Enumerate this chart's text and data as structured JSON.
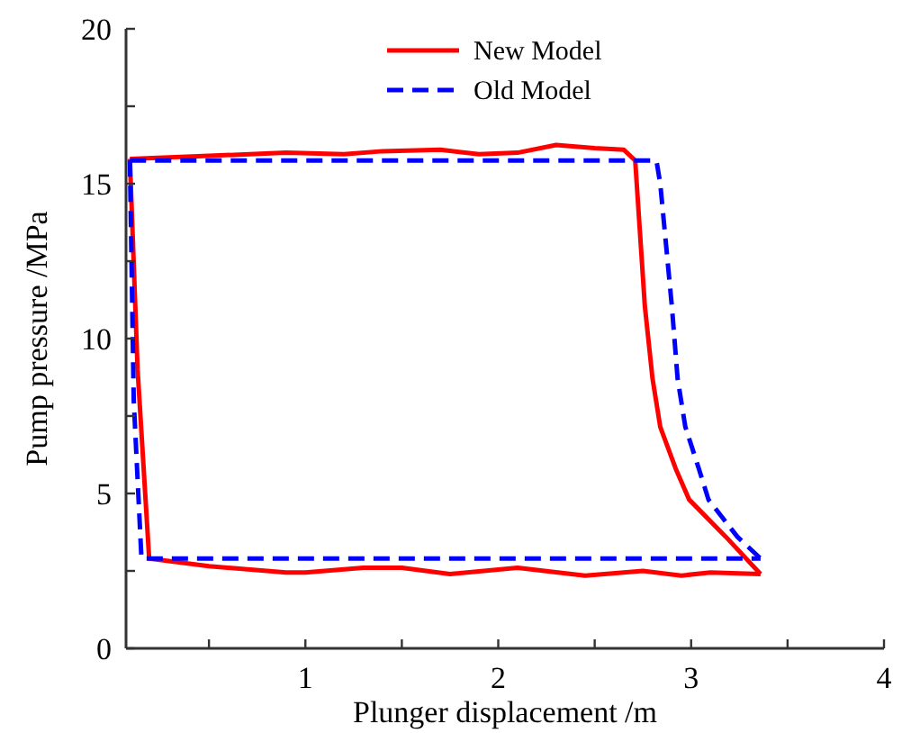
{
  "chart_data": {
    "type": "line",
    "xlabel": "Plunger displacement /m",
    "ylabel": "Pump pressure /MPa",
    "xlim": [
      0.07,
      4
    ],
    "ylim": [
      0,
      20
    ],
    "xticks": [
      {
        "value": 0.5,
        "label": null
      },
      1,
      {
        "value": 1.5,
        "label": null
      },
      2,
      {
        "value": 2.5,
        "label": null
      },
      3,
      {
        "value": 3.5,
        "label": null
      },
      4
    ],
    "yticks": [
      0,
      {
        "value": 2.5,
        "label": null
      },
      5,
      {
        "value": 7.5,
        "label": null
      },
      10,
      {
        "value": 12.5,
        "label": null
      },
      15,
      {
        "value": 17.5,
        "label": null
      },
      20
    ],
    "legend": "top",
    "grid": false,
    "series": [
      {
        "name": "New Model",
        "color": "#ff0000",
        "line_style": "solid",
        "x": [
          0.09,
          0.5,
          0.9,
          1.2,
          1.4,
          1.7,
          1.9,
          2.1,
          2.3,
          2.5,
          2.65,
          2.71,
          2.76,
          2.8,
          2.84,
          2.92,
          2.99,
          3.18,
          3.36
        ],
        "values": [
          15.8,
          15.9,
          16.0,
          15.95,
          16.05,
          16.1,
          15.95,
          16.0,
          16.25,
          16.15,
          16.1,
          15.75,
          11.05,
          8.7,
          7.15,
          5.8,
          4.8,
          3.6,
          2.4
        ]
      },
      {
        "color": "#ff0000",
        "line_style": "solid",
        "x": [
          0.09,
          0.13,
          0.19,
          0.5,
          0.9,
          1.0,
          1.3,
          1.5,
          1.75,
          2.1,
          2.45,
          2.75,
          2.95,
          3.1,
          3.36
        ],
        "values": [
          15.8,
          9,
          2.9,
          2.65,
          2.45,
          2.45,
          2.6,
          2.6,
          2.4,
          2.6,
          2.35,
          2.5,
          2.35,
          2.45,
          2.4
        ]
      },
      {
        "name": "Old Model",
        "color": "#0000ff",
        "line_style": "dashed",
        "x": [
          0.09,
          2.82,
          2.84,
          2.9,
          2.93,
          2.97,
          3.04,
          3.09,
          3.24,
          3.36
        ],
        "values": [
          15.75,
          15.75,
          15.0,
          11.05,
          8.7,
          7.15,
          5.8,
          4.8,
          3.6,
          2.9
        ]
      },
      {
        "color": "#0000ff",
        "line_style": "dashed",
        "x": [
          0.09,
          0.11,
          0.15,
          3.36
        ],
        "values": [
          15.75,
          8,
          2.9,
          2.9
        ]
      }
    ]
  }
}
